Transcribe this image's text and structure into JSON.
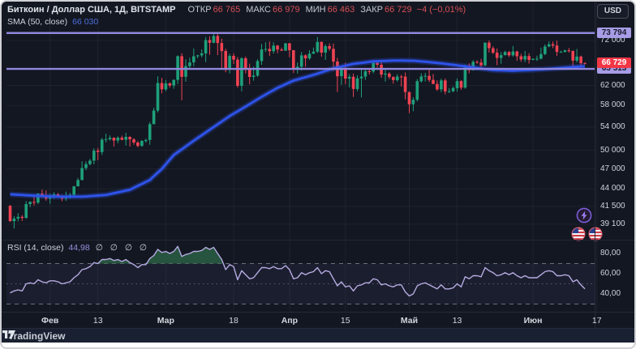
{
  "header": {
    "title": "Биткоин / Доллар США, 1Д, BITSTAMP",
    "open_label": "ОТКР",
    "open": "66 765",
    "high_label": "МАКС",
    "high": "66 979",
    "low_label": "МИН",
    "low": "66 463",
    "close_label": "ЗАКР",
    "close": "66 729",
    "change": "−4 (−0,01%)",
    "sma_label": "SMA (50, close)",
    "sma_value": "66 030"
  },
  "rsi_legend": {
    "label": "RSI (14, close)",
    "value": "44,98",
    "empty_values": "∅ ∅ ∅ ∅"
  },
  "price_axis": {
    "currency": "USD",
    "ticks": [
      {
        "label": "72 000",
        "value": 72000
      },
      {
        "label": "62 000",
        "value": 62000
      },
      {
        "label": "58 000",
        "value": 58000
      },
      {
        "label": "54 000",
        "value": 54000
      },
      {
        "label": "50 000",
        "value": 50000
      },
      {
        "label": "47 000",
        "value": 47000
      },
      {
        "label": "44 000",
        "value": 44000
      },
      {
        "label": "41 500",
        "value": 41500
      },
      {
        "label": "39 100",
        "value": 39100
      }
    ],
    "level_labels": [
      {
        "label": "73 794",
        "value": 73794
      },
      {
        "label": "65 513",
        "value": 65513
      }
    ],
    "last_price": {
      "label": "66 729",
      "value": 66729
    }
  },
  "rsi_axis": {
    "ticks": [
      {
        "label": "80,00",
        "value": 80
      },
      {
        "label": "60,00",
        "value": 60
      },
      {
        "label": "40,00",
        "value": 40
      }
    ]
  },
  "time_axis": {
    "ticks": [
      {
        "label": "Фев",
        "index": 10,
        "major": true
      },
      {
        "label": "13",
        "index": 22,
        "major": false
      },
      {
        "label": "Мар",
        "index": 39,
        "major": true
      },
      {
        "label": "18",
        "index": 56,
        "major": false
      },
      {
        "label": "Апр",
        "index": 70,
        "major": true
      },
      {
        "label": "15",
        "index": 84,
        "major": false
      },
      {
        "label": "Май",
        "index": 100,
        "major": true
      },
      {
        "label": "13",
        "index": 112,
        "major": false
      },
      {
        "label": "Июн",
        "index": 131,
        "major": true
      },
      {
        "label": "17",
        "index": 147,
        "major": false
      }
    ]
  },
  "branding": {
    "name": "TradingView"
  },
  "event_icons": [
    "lightning",
    "us-flag",
    "us-flag"
  ],
  "colors": {
    "background": "#131722",
    "up": "#1fa07a",
    "down": "#ef4353",
    "sma": "#2e53e8",
    "level": "#9287de",
    "rsi_line": "#b6abe2",
    "rsi_fill": "#2a5b41",
    "grid": "rgba(255,255,255,0.05)",
    "band_dash": "#8f95a5",
    "band_fill": "rgba(140,125,215,0.07)",
    "axis_text": "#cfd3dc",
    "last_label_bg": "#f23645",
    "level_label_bg": "#a79ce6"
  },
  "chart_data": {
    "type": "candlestick",
    "title": "Биткоин / Доллар США, 1Д, BITSTAMP",
    "log_scale": true,
    "levels": [
      73794,
      65513
    ],
    "price_ticks": [
      72000,
      62000,
      58000,
      54000,
      50000,
      47000,
      44000,
      41500,
      39100
    ],
    "rsi_ticks": [
      80,
      60,
      40
    ],
    "rsi_bands": {
      "overbought": 70,
      "middle": 50,
      "oversold": 30
    },
    "candles_ohlc": [
      [
        41580,
        41690,
        39430,
        39510
      ],
      [
        39510,
        40180,
        38560,
        39850
      ],
      [
        39850,
        40560,
        39480,
        40080
      ],
      [
        40080,
        40300,
        39550,
        39950
      ],
      [
        39950,
        42250,
        39820,
        41820
      ],
      [
        41820,
        42200,
        41390,
        42120
      ],
      [
        42120,
        42840,
        41620,
        42030
      ],
      [
        42030,
        43330,
        41800,
        43300
      ],
      [
        43300,
        43880,
        42680,
        42940
      ],
      [
        42940,
        43750,
        42280,
        42580
      ],
      [
        42580,
        43290,
        41880,
        43080
      ],
      [
        43080,
        43490,
        42550,
        43190
      ],
      [
        43190,
        43380,
        42880,
        43010
      ],
      [
        43010,
        43120,
        42220,
        42580
      ],
      [
        42580,
        43570,
        42260,
        42710
      ],
      [
        42710,
        43400,
        42570,
        43100
      ],
      [
        43100,
        44400,
        42790,
        44350
      ],
      [
        44350,
        45610,
        44340,
        45290
      ],
      [
        45290,
        48200,
        45240,
        47130
      ],
      [
        47130,
        48170,
        46800,
        47750
      ],
      [
        47750,
        48590,
        47560,
        48300
      ],
      [
        48300,
        50330,
        47710,
        49920
      ],
      [
        49920,
        50370,
        48360,
        49700
      ],
      [
        49700,
        52080,
        49230,
        51800
      ],
      [
        51800,
        52820,
        51310,
        51880
      ],
      [
        51880,
        52540,
        51630,
        52120
      ],
      [
        52120,
        52190,
        50630,
        51640
      ],
      [
        51640,
        52380,
        51170,
        52120
      ],
      [
        52120,
        52490,
        51680,
        51770
      ],
      [
        51770,
        52990,
        50760,
        52280
      ],
      [
        52280,
        52370,
        50620,
        51840
      ],
      [
        51840,
        52070,
        50940,
        51300
      ],
      [
        51300,
        51550,
        50520,
        50730
      ],
      [
        50730,
        51700,
        50590,
        51570
      ],
      [
        51570,
        51960,
        51290,
        51730
      ],
      [
        51730,
        54900,
        50930,
        54520
      ],
      [
        54520,
        57580,
        54480,
        57040
      ],
      [
        57040,
        63910,
        56690,
        62500
      ],
      [
        62500,
        63590,
        60370,
        61200
      ],
      [
        61200,
        63110,
        60810,
        62440
      ],
      [
        62440,
        62630,
        61560,
        61990
      ],
      [
        61990,
        63230,
        61320,
        63170
      ],
      [
        63170,
        68500,
        62300,
        68330
      ],
      [
        68330,
        69000,
        59010,
        63800
      ],
      [
        63800,
        67640,
        62780,
        66110
      ],
      [
        66110,
        67980,
        65550,
        66930
      ],
      [
        66930,
        70080,
        66080,
        68300
      ],
      [
        68300,
        68650,
        67860,
        68500
      ],
      [
        68500,
        69890,
        68090,
        68960
      ],
      [
        68960,
        72800,
        67020,
        72080
      ],
      [
        72080,
        72970,
        68640,
        71450
      ],
      [
        71450,
        73640,
        71330,
        73080
      ],
      [
        73080,
        73794,
        68560,
        71390
      ],
      [
        71390,
        72420,
        65600,
        69500
      ],
      [
        69500,
        70040,
        64770,
        65300
      ],
      [
        65300,
        68900,
        64530,
        68390
      ],
      [
        68390,
        68960,
        66570,
        67550
      ],
      [
        67550,
        68120,
        61560,
        61910
      ],
      [
        61910,
        68100,
        60780,
        67840
      ],
      [
        67840,
        68240,
        64530,
        65500
      ],
      [
        65500,
        66650,
        62260,
        63780
      ],
      [
        63780,
        66000,
        63000,
        64060
      ],
      [
        64060,
        67630,
        63770,
        67230
      ],
      [
        67230,
        71150,
        66390,
        69880
      ],
      [
        69880,
        71560,
        69280,
        69990
      ],
      [
        69990,
        71770,
        68360,
        69470
      ],
      [
        69470,
        71550,
        68900,
        70780
      ],
      [
        70780,
        70920,
        69010,
        69850
      ],
      [
        69850,
        70320,
        69540,
        69580
      ],
      [
        69580,
        71370,
        69560,
        71330
      ],
      [
        71330,
        71340,
        68110,
        69700
      ],
      [
        69700,
        69710,
        64590,
        65450
      ],
      [
        65450,
        66910,
        64490,
        65980
      ],
      [
        65980,
        69310,
        65110,
        68510
      ],
      [
        68510,
        68760,
        65950,
        67840
      ],
      [
        67840,
        69690,
        67480,
        68900
      ],
      [
        68900,
        70330,
        68810,
        69360
      ],
      [
        69360,
        72800,
        69040,
        71630
      ],
      [
        71630,
        71760,
        68210,
        69140
      ],
      [
        69140,
        71090,
        67500,
        70630
      ],
      [
        70630,
        71310,
        69570,
        70010
      ],
      [
        70010,
        71230,
        65090,
        67120
      ],
      [
        67120,
        67930,
        60660,
        63920
      ],
      [
        63920,
        65840,
        62130,
        65740
      ],
      [
        65740,
        66870,
        62270,
        63420
      ],
      [
        63420,
        64370,
        61600,
        63790
      ],
      [
        63790,
        64490,
        59680,
        61280
      ],
      [
        61280,
        64120,
        60800,
        63470
      ],
      [
        63470,
        65450,
        59600,
        63840
      ],
      [
        63840,
        65420,
        63130,
        64990
      ],
      [
        64990,
        65700,
        64280,
        64930
      ],
      [
        64930,
        67230,
        64550,
        66840
      ],
      [
        66840,
        67180,
        65770,
        66410
      ],
      [
        66410,
        67090,
        63610,
        64280
      ],
      [
        64280,
        65300,
        62790,
        64480
      ],
      [
        64480,
        64790,
        63320,
        63760
      ],
      [
        63760,
        63900,
        62380,
        63110
      ],
      [
        63110,
        64370,
        62780,
        63870
      ],
      [
        63870,
        64230,
        61770,
        63840
      ],
      [
        63840,
        64720,
        59190,
        60640
      ],
      [
        60640,
        60780,
        56550,
        58250
      ],
      [
        58250,
        59630,
        56910,
        59120
      ],
      [
        59120,
        63330,
        58800,
        62890
      ],
      [
        62890,
        64540,
        62590,
        63890
      ],
      [
        63890,
        64640,
        62820,
        64010
      ],
      [
        64010,
        65500,
        62700,
        63160
      ],
      [
        63160,
        64430,
        62260,
        62310
      ],
      [
        62310,
        63040,
        60890,
        61190
      ],
      [
        61190,
        63420,
        60630,
        63050
      ],
      [
        63050,
        63450,
        60200,
        60790
      ],
      [
        60790,
        61450,
        60490,
        60830
      ],
      [
        60830,
        61820,
        60610,
        61450
      ],
      [
        61450,
        63440,
        60750,
        62900
      ],
      [
        62900,
        63100,
        61140,
        61550
      ],
      [
        61550,
        66440,
        61320,
        66270
      ],
      [
        66270,
        66700,
        64570,
        65230
      ],
      [
        65230,
        67450,
        65110,
        67050
      ],
      [
        67050,
        67400,
        66610,
        66910
      ],
      [
        66910,
        67700,
        65860,
        66280
      ],
      [
        66280,
        71520,
        66060,
        71450
      ],
      [
        71450,
        71980,
        69150,
        70150
      ],
      [
        70150,
        70620,
        68840,
        69120
      ],
      [
        69120,
        70090,
        66310,
        67940
      ],
      [
        67940,
        69250,
        66620,
        68540
      ],
      [
        68540,
        69580,
        68500,
        69260
      ],
      [
        69260,
        69500,
        68170,
        68510
      ],
      [
        68510,
        70670,
        68230,
        69390
      ],
      [
        69390,
        69590,
        67290,
        68300
      ],
      [
        68300,
        68880,
        67090,
        67580
      ],
      [
        67580,
        69500,
        66990,
        68360
      ],
      [
        68360,
        69000,
        66670,
        67490
      ],
      [
        67490,
        67850,
        67390,
        67710
      ],
      [
        67710,
        68430,
        67250,
        67750
      ],
      [
        67750,
        70290,
        67600,
        68800
      ],
      [
        68800,
        71050,
        68570,
        70570
      ],
      [
        70570,
        71760,
        70380,
        71080
      ],
      [
        71080,
        71700,
        70180,
        70780
      ],
      [
        70780,
        71950,
        68420,
        69310
      ],
      [
        69310,
        69580,
        69180,
        69310
      ],
      [
        69310,
        69850,
        69120,
        69650
      ],
      [
        69650,
        70200,
        69150,
        69540
      ],
      [
        69540,
        69590,
        66100,
        67330
      ],
      [
        67330,
        70000,
        66910,
        68240
      ],
      [
        68240,
        68450,
        66250,
        66733
      ],
      [
        66765,
        66979,
        66463,
        66729
      ]
    ],
    "sma50_points": [
      [
        0,
        43200
      ],
      [
        6,
        43000
      ],
      [
        12,
        42850
      ],
      [
        18,
        42850
      ],
      [
        24,
        43100
      ],
      [
        30,
        43850
      ],
      [
        35,
        45300
      ],
      [
        38,
        47000
      ],
      [
        41,
        49200
      ],
      [
        46,
        51600
      ],
      [
        51,
        54000
      ],
      [
        55,
        56000
      ],
      [
        59,
        57800
      ],
      [
        63,
        59700
      ],
      [
        67,
        61500
      ],
      [
        71,
        63000
      ],
      [
        76,
        64200
      ],
      [
        81,
        65600
      ],
      [
        86,
        66600
      ],
      [
        91,
        67150
      ],
      [
        96,
        67350
      ],
      [
        101,
        67300
      ],
      [
        106,
        66900
      ],
      [
        111,
        66400
      ],
      [
        116,
        65800
      ],
      [
        121,
        65250
      ],
      [
        126,
        65100
      ],
      [
        131,
        65300
      ],
      [
        136,
        65550
      ],
      [
        141,
        65900
      ],
      [
        144,
        66100
      ]
    ],
    "rsi14_values": [
      41,
      43,
      44,
      43,
      50,
      51,
      50,
      54,
      52,
      51,
      53,
      53,
      52,
      50,
      51,
      52,
      56,
      59,
      64,
      65,
      67,
      71,
      70,
      74,
      74,
      75,
      73,
      74,
      72,
      74,
      71,
      69,
      66,
      69,
      69,
      75,
      78,
      84,
      81,
      82,
      80,
      82,
      87,
      77,
      79,
      80,
      82,
      82,
      83,
      86,
      84,
      86,
      80,
      74,
      64,
      69,
      67,
      54,
      63,
      59,
      55,
      56,
      61,
      66,
      66,
      65,
      67,
      65,
      65,
      68,
      64,
      55,
      56,
      61,
      59,
      61,
      62,
      66,
      60,
      63,
      62,
      55,
      48,
      52,
      47,
      48,
      43,
      48,
      49,
      51,
      51,
      55,
      54,
      49,
      50,
      48,
      47,
      49,
      49,
      42,
      38,
      40,
      48,
      50,
      51,
      49,
      47,
      45,
      49,
      45,
      45,
      46,
      50,
      47,
      57,
      55,
      58,
      58,
      57,
      66,
      63,
      61,
      58,
      59,
      61,
      59,
      61,
      58,
      56,
      58,
      56,
      56,
      56,
      59,
      62,
      63,
      62,
      58,
      58,
      59,
      58,
      52,
      54,
      49,
      44.98
    ]
  }
}
